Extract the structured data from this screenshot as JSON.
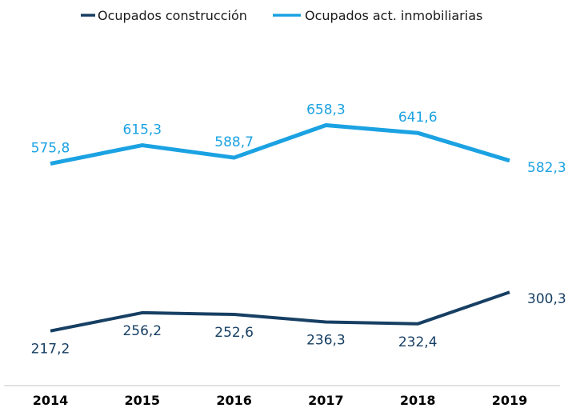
{
  "chart_data": {
    "type": "line",
    "title": "",
    "xlabel": "",
    "ylabel": "",
    "categories": [
      "2014",
      "2015",
      "2016",
      "2017",
      "2018",
      "2019"
    ],
    "ylim": [
      100,
      750
    ],
    "grid": false,
    "legend_position": "top",
    "series": [
      {
        "name": "Ocupados construcción",
        "color": "#173F63",
        "values": [
          217.2,
          256.2,
          252.6,
          236.3,
          232.4,
          300.3
        ],
        "labels": [
          "217,2",
          "256,2",
          "252,6",
          "236,3",
          "232,4",
          "300,3"
        ],
        "label_positions": [
          "below",
          "below",
          "below",
          "below",
          "below",
          "right"
        ]
      },
      {
        "name": "Ocupados act. inmobiliarias",
        "color": "#1BA2E2",
        "values": [
          575.8,
          615.3,
          588.7,
          658.3,
          641.6,
          582.3
        ],
        "labels": [
          "575,8",
          "615,3",
          "588,7",
          "658,3",
          "641,6",
          "582,3"
        ],
        "label_positions": [
          "above",
          "above",
          "above",
          "above",
          "above",
          "right"
        ]
      }
    ]
  }
}
